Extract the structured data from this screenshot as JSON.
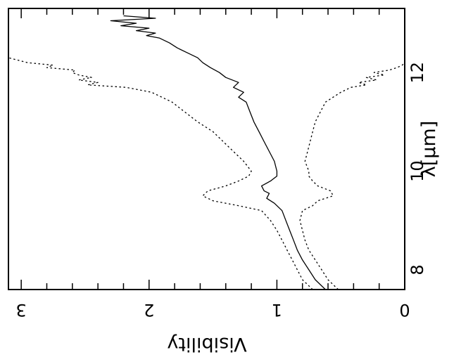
{
  "chart_data": {
    "type": "line",
    "orientation": "rotated-90-clockwise",
    "xlabel": "λ[μm]",
    "ylabel": "Visibility",
    "xlim": [
      7.6,
      13.3
    ],
    "ylim": [
      0,
      3.1
    ],
    "x_ticks": [
      {
        "value": 8,
        "label": "8"
      },
      {
        "value": 10,
        "label": "10"
      },
      {
        "value": 12,
        "label": "12"
      }
    ],
    "y_ticks": [
      {
        "value": 0,
        "label": "0"
      },
      {
        "value": 1,
        "label": "1"
      },
      {
        "value": 2,
        "label": "2"
      },
      {
        "value": 3,
        "label": "3"
      }
    ],
    "x_minor_step": 0.5,
    "y_minor_step": 0.2,
    "grid": false,
    "legend": "none",
    "series": [
      {
        "style": "solid",
        "x": [
          7.6,
          7.7,
          7.8,
          8.0,
          8.2,
          8.4,
          8.6,
          8.8,
          9.0,
          9.2,
          9.35,
          9.45,
          9.55,
          9.6,
          9.7,
          9.8,
          9.9,
          10.0,
          10.2,
          10.4,
          10.6,
          10.8,
          11.0,
          11.2,
          11.4,
          11.5,
          11.6,
          11.7,
          11.8,
          11.9,
          12.0,
          12.1,
          12.2,
          12.3,
          12.4,
          12.5,
          12.6,
          12.7,
          12.75,
          12.8,
          12.85,
          12.9,
          12.95,
          13.0,
          13.05,
          13.1,
          13.15
        ],
        "y": [
          0.62,
          0.66,
          0.7,
          0.75,
          0.8,
          0.84,
          0.87,
          0.9,
          0.93,
          0.96,
          1.02,
          1.08,
          1.06,
          1.1,
          1.12,
          1.05,
          1.0,
          1.0,
          1.02,
          1.06,
          1.1,
          1.14,
          1.18,
          1.21,
          1.24,
          1.3,
          1.26,
          1.34,
          1.3,
          1.4,
          1.45,
          1.52,
          1.58,
          1.62,
          1.7,
          1.78,
          1.84,
          1.92,
          2.02,
          1.95,
          2.1,
          2.0,
          2.22,
          2.1,
          2.3,
          1.95,
          2.2
        ]
      },
      {
        "style": "dotted",
        "x": [
          7.6,
          7.7,
          7.8,
          8.0,
          8.2,
          8.4,
          8.6,
          8.8,
          9.0,
          9.2,
          9.3,
          9.4,
          9.5,
          9.6,
          9.7,
          9.8,
          9.9,
          10.0,
          10.2,
          10.4,
          10.6,
          10.8,
          11.0,
          11.2,
          11.4,
          11.6,
          11.7,
          11.75,
          11.8,
          11.85,
          11.9,
          11.95,
          12.0,
          12.05,
          12.1,
          12.15,
          12.2,
          12.3
        ],
        "y": [
          0.72,
          0.76,
          0.8,
          0.84,
          0.88,
          0.92,
          0.96,
          1.0,
          1.05,
          1.12,
          1.3,
          1.5,
          1.58,
          1.54,
          1.4,
          1.3,
          1.22,
          1.2,
          1.26,
          1.34,
          1.42,
          1.5,
          1.62,
          1.72,
          1.82,
          1.98,
          2.18,
          2.48,
          2.4,
          2.55,
          2.45,
          2.55,
          2.6,
          2.58,
          2.8,
          2.75,
          2.95,
          3.1
        ]
      },
      {
        "style": "dotted",
        "x": [
          7.6,
          7.7,
          7.8,
          8.0,
          8.2,
          8.4,
          8.6,
          8.8,
          9.0,
          9.2,
          9.3,
          9.4,
          9.5,
          9.6,
          9.7,
          9.8,
          9.9,
          10.0,
          10.2,
          10.4,
          10.6,
          10.8,
          11.0,
          11.2,
          11.4,
          11.6,
          11.7,
          11.75,
          11.8,
          11.85,
          11.9,
          11.95,
          12.0,
          12.05,
          12.1,
          12.15,
          12.2
        ],
        "y": [
          0.52,
          0.56,
          0.6,
          0.65,
          0.7,
          0.75,
          0.78,
          0.8,
          0.82,
          0.8,
          0.72,
          0.68,
          0.56,
          0.58,
          0.68,
          0.72,
          0.75,
          0.75,
          0.78,
          0.76,
          0.74,
          0.72,
          0.7,
          0.66,
          0.62,
          0.5,
          0.42,
          0.3,
          0.36,
          0.22,
          0.3,
          0.16,
          0.24,
          0.12,
          0.06,
          0.02,
          0.0
        ]
      }
    ]
  }
}
